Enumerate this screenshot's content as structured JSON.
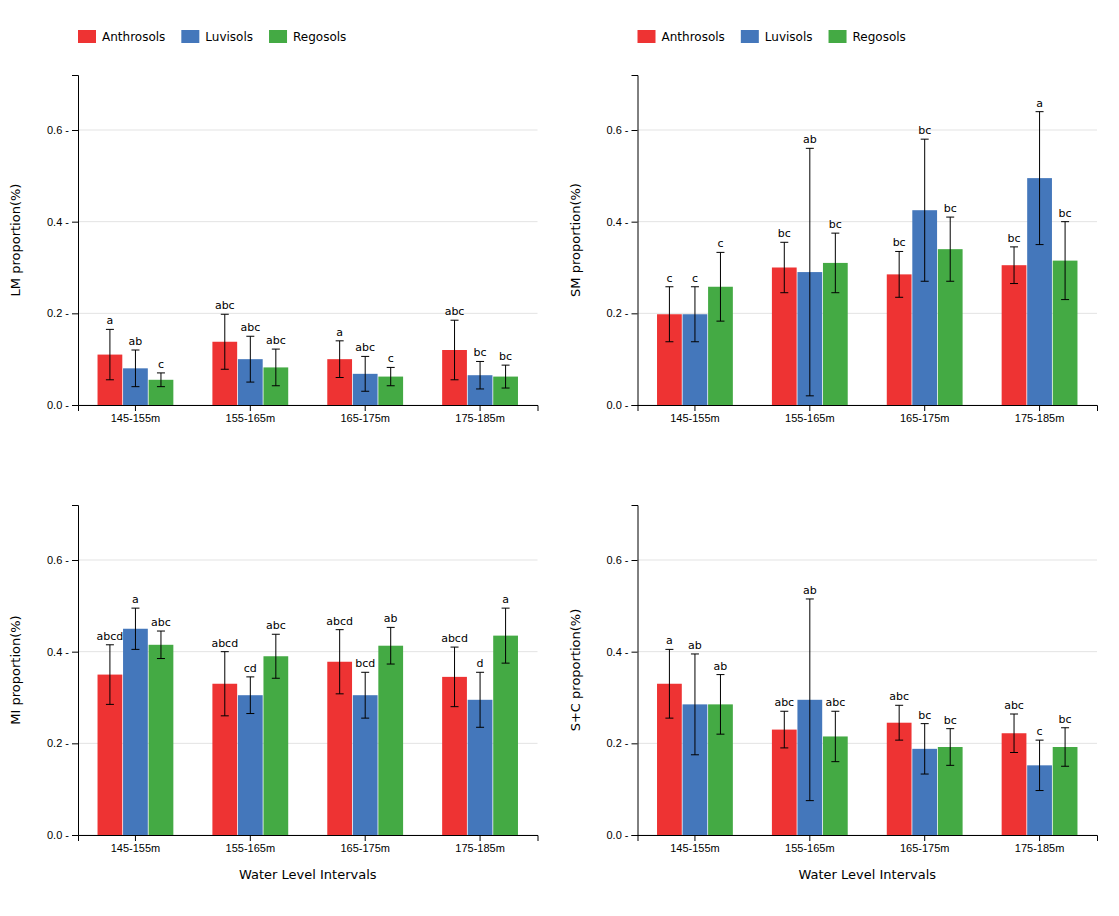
{
  "chart_data": [
    {
      "type": "bar",
      "ylabel": "LM proportion(%)",
      "categories": [
        "145-155m",
        "155-165m",
        "165-175m",
        "175-185m"
      ],
      "series": [
        {
          "name": "Anthrosols",
          "color": "#EE3333",
          "values": [
            0.11,
            0.138,
            0.1,
            0.12
          ],
          "errors": [
            0.055,
            0.06,
            0.04,
            0.065
          ],
          "labels": [
            "a",
            "abc",
            "a",
            "abc"
          ]
        },
        {
          "name": "Luvisols",
          "color": "#4477BB",
          "values": [
            0.08,
            0.1,
            0.068,
            0.065
          ],
          "errors": [
            0.04,
            0.05,
            0.038,
            0.03
          ],
          "labels": [
            "ab",
            "abc",
            "abc",
            "bc"
          ]
        },
        {
          "name": "Regosols",
          "color": "#44AA44",
          "values": [
            0.055,
            0.082,
            0.062,
            0.062
          ],
          "errors": [
            0.015,
            0.04,
            0.02,
            0.025
          ],
          "labels": [
            "c",
            "abc",
            "c",
            "bc"
          ]
        }
      ],
      "ylim": [
        0,
        0.72
      ],
      "yticks": [
        {
          "value": 0.0,
          "label": "0.0 -"
        },
        {
          "value": 0.2,
          "label": "0.2 -"
        },
        {
          "value": 0.4,
          "label": "0.4 -"
        },
        {
          "value": 0.6,
          "label": "0.6 -"
        }
      ],
      "grid": true,
      "legend": "upper left"
    },
    {
      "type": "bar",
      "ylabel": "SM proportion(%)",
      "categories": [
        "145-155m",
        "155-165m",
        "165-175m",
        "175-185m"
      ],
      "series": [
        {
          "name": "Anthrosols",
          "color": "#EE3333",
          "values": [
            0.198,
            0.3,
            0.285,
            0.305
          ],
          "errors": [
            0.06,
            0.055,
            0.05,
            0.04
          ],
          "labels": [
            "c",
            "bc",
            "bc",
            "bc"
          ]
        },
        {
          "name": "Luvisols",
          "color": "#4477BB",
          "values": [
            0.198,
            0.29,
            0.425,
            0.495
          ],
          "errors": [
            0.06,
            0.27,
            0.155,
            0.145
          ],
          "labels": [
            "c",
            "ab",
            "bc",
            "a"
          ]
        },
        {
          "name": "Regosols",
          "color": "#44AA44",
          "values": [
            0.258,
            0.31,
            0.34,
            0.315
          ],
          "errors": [
            0.075,
            0.065,
            0.07,
            0.085
          ],
          "labels": [
            "c",
            "bc",
            "bc",
            "bc"
          ]
        }
      ],
      "ylim": [
        0,
        0.72
      ],
      "yticks": [
        {
          "value": 0.0,
          "label": "0.0 -"
        },
        {
          "value": 0.2,
          "label": "0.2 -"
        },
        {
          "value": 0.4,
          "label": "0.4 -"
        },
        {
          "value": 0.6,
          "label": "0.6 -"
        }
      ],
      "grid": true,
      "legend": "upper left"
    },
    {
      "type": "bar",
      "ylabel": "MI proportion(%)",
      "xlabel": "Water Level Intervals",
      "categories": [
        "145-155m",
        "155-165m",
        "165-175m",
        "175-185m"
      ],
      "series": [
        {
          "name": "Anthrosols",
          "color": "#EE3333",
          "values": [
            0.35,
            0.33,
            0.378,
            0.345
          ],
          "errors": [
            0.065,
            0.07,
            0.07,
            0.065
          ],
          "labels": [
            "abcd",
            "abcd",
            "abcd",
            "abcd"
          ]
        },
        {
          "name": "Luvisols",
          "color": "#4477BB",
          "values": [
            0.45,
            0.305,
            0.305,
            0.295
          ],
          "errors": [
            0.045,
            0.04,
            0.05,
            0.06
          ],
          "labels": [
            "a",
            "cd",
            "bcd",
            "d"
          ]
        },
        {
          "name": "Regosols",
          "color": "#44AA44",
          "values": [
            0.415,
            0.39,
            0.413,
            0.435
          ],
          "errors": [
            0.03,
            0.048,
            0.04,
            0.06
          ],
          "labels": [
            "abc",
            "abc",
            "ab",
            "a"
          ]
        }
      ],
      "ylim": [
        0,
        0.72
      ],
      "yticks": [
        {
          "value": 0.0,
          "label": "0.0 -"
        },
        {
          "value": 0.2,
          "label": "0.2 -"
        },
        {
          "value": 0.4,
          "label": "0.4 -"
        },
        {
          "value": 0.6,
          "label": "0.6 -"
        }
      ],
      "grid": true
    },
    {
      "type": "bar",
      "ylabel": "S+C proportion(%)",
      "xlabel": "Water Level Intervals",
      "categories": [
        "145-155m",
        "155-165m",
        "165-175m",
        "175-185m"
      ],
      "series": [
        {
          "name": "Anthrosols",
          "color": "#EE3333",
          "values": [
            0.33,
            0.23,
            0.245,
            0.222
          ],
          "errors": [
            0.075,
            0.04,
            0.038,
            0.042
          ],
          "labels": [
            "a",
            "abc",
            "abc",
            "abc"
          ]
        },
        {
          "name": "Luvisols",
          "color": "#4477BB",
          "values": [
            0.285,
            0.295,
            0.188,
            0.152
          ],
          "errors": [
            0.11,
            0.22,
            0.055,
            0.055
          ],
          "labels": [
            "ab",
            "ab",
            "bc",
            "c"
          ]
        },
        {
          "name": "Regosols",
          "color": "#44AA44",
          "values": [
            0.285,
            0.215,
            0.192,
            0.192
          ],
          "errors": [
            0.065,
            0.055,
            0.04,
            0.042
          ],
          "labels": [
            "ab",
            "abc",
            "bc",
            "bc"
          ]
        }
      ],
      "ylim": [
        0,
        0.72
      ],
      "yticks": [
        {
          "value": 0.0,
          "label": "0.0 -"
        },
        {
          "value": 0.2,
          "label": "0.2 -"
        },
        {
          "value": 0.4,
          "label": "0.4 -"
        },
        {
          "value": 0.6,
          "label": "0.6 -"
        }
      ],
      "grid": true
    }
  ]
}
